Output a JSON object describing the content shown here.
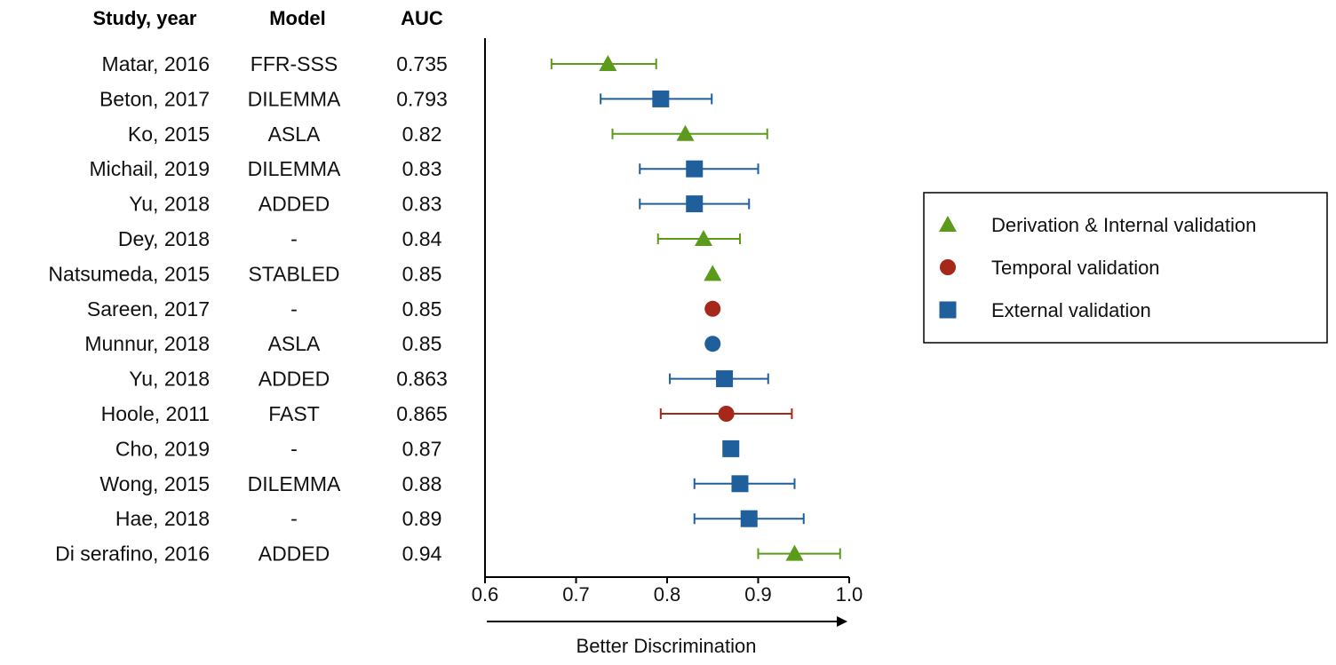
{
  "table": {
    "headers": {
      "study": "Study, year",
      "model": "Model",
      "auc": "AUC"
    }
  },
  "chart_data": {
    "type": "scatter",
    "subtype": "forest-plot",
    "title": "",
    "xlabel": "Better Discrimination",
    "ylabel": "",
    "xlim": [
      0.6,
      1.0
    ],
    "xticks": [
      "0.6",
      "0.7",
      "0.8",
      "0.9",
      "1.0"
    ],
    "grid": false,
    "legend_position": "right",
    "legend": [
      {
        "name": "Derivation & Internal validation",
        "shape": "triangle",
        "color": "#5b9a1b"
      },
      {
        "name": "Temporal validation",
        "shape": "circle",
        "color": "#a5281b"
      },
      {
        "name": "External validation",
        "shape": "square",
        "color": "#1f5f9c"
      }
    ],
    "rows": [
      {
        "study": "Matar, 2016",
        "model": "FFR-SSS",
        "auc_label": "0.735",
        "auc": 0.735,
        "ci": [
          0.673,
          0.788
        ],
        "type": "derivation"
      },
      {
        "study": "Beton, 2017",
        "model": "DILEMMA",
        "auc_label": "0.793",
        "auc": 0.793,
        "ci": [
          0.727,
          0.849
        ],
        "type": "external"
      },
      {
        "study": "Ko, 2015",
        "model": "ASLA",
        "auc_label": "0.82",
        "auc": 0.82,
        "ci": [
          0.74,
          0.91
        ],
        "type": "derivation"
      },
      {
        "study": "Michail, 2019",
        "model": "DILEMMA",
        "auc_label": "0.83",
        "auc": 0.83,
        "ci": [
          0.77,
          0.9
        ],
        "type": "external"
      },
      {
        "study": "Yu, 2018",
        "model": "ADDED",
        "auc_label": "0.83",
        "auc": 0.83,
        "ci": [
          0.77,
          0.89
        ],
        "type": "external"
      },
      {
        "study": "Dey, 2018",
        "model": "-",
        "auc_label": "0.84",
        "auc": 0.84,
        "ci": [
          0.79,
          0.88
        ],
        "type": "derivation"
      },
      {
        "study": "Natsumeda, 2015",
        "model": "STABLED",
        "auc_label": "0.85",
        "auc": 0.85,
        "ci": null,
        "type": "derivation"
      },
      {
        "study": "Sareen, 2017",
        "model": "-",
        "auc_label": "0.85",
        "auc": 0.85,
        "ci": null,
        "type": "temporal"
      },
      {
        "study": "Munnur, 2018",
        "model": "ASLA",
        "auc_label": "0.85",
        "auc": 0.85,
        "ci": null,
        "type": "external-circle"
      },
      {
        "study": "Yu, 2018",
        "model": "ADDED",
        "auc_label": "0.863",
        "auc": 0.863,
        "ci": [
          0.803,
          0.911
        ],
        "type": "external"
      },
      {
        "study": "Hoole, 2011",
        "model": "FAST",
        "auc_label": "0.865",
        "auc": 0.865,
        "ci": [
          0.793,
          0.937
        ],
        "type": "temporal"
      },
      {
        "study": "Cho, 2019",
        "model": "-",
        "auc_label": "0.87",
        "auc": 0.87,
        "ci": null,
        "type": "external"
      },
      {
        "study": "Wong, 2015",
        "model": "DILEMMA",
        "auc_label": "0.88",
        "auc": 0.88,
        "ci": [
          0.83,
          0.94
        ],
        "type": "external"
      },
      {
        "study": "Hae, 2018",
        "model": "-",
        "auc_label": "0.89",
        "auc": 0.89,
        "ci": [
          0.83,
          0.95
        ],
        "type": "external"
      },
      {
        "study": "Di serafino, 2016",
        "model": "ADDED",
        "auc_label": "0.94",
        "auc": 0.94,
        "ci": [
          0.9,
          0.99
        ],
        "type": "derivation"
      }
    ]
  },
  "colors": {
    "derivation": "#5b9a1b",
    "temporal": "#a5281b",
    "external": "#1f5f9c"
  }
}
